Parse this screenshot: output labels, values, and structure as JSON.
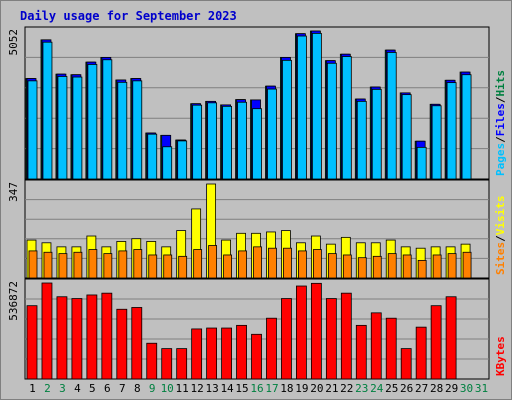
{
  "title": "Daily usage for September 2023",
  "colors": {
    "background": "#c0c0c0",
    "panel": "#c0c0c0",
    "grid": "#7f7f7f",
    "pages": "#00c0ff",
    "files": "#0000ff",
    "hits": "#008040",
    "visits": "#ffff00",
    "sites": "#ff8000",
    "kbytes": "#ff0000",
    "weekday_label": "#000000",
    "weekend_label": "#008040",
    "title": "#0000cc"
  },
  "chart_data": [
    {
      "type": "bar",
      "panel": "hits-files-pages",
      "ymax_label": "5052",
      "ylim": [
        0,
        5052
      ],
      "legend": [
        "Pages",
        "Files",
        "Hits"
      ],
      "x": [
        "1",
        "2",
        "3",
        "4",
        "5",
        "6",
        "7",
        "8",
        "9",
        "10",
        "11",
        "12",
        "13",
        "14",
        "15",
        "16",
        "17",
        "18",
        "19",
        "20",
        "21",
        "22",
        "23",
        "24",
        "25",
        "26",
        "27",
        "28",
        "29",
        "30",
        "31"
      ],
      "weekend": [
        false,
        true,
        true,
        false,
        false,
        false,
        false,
        false,
        true,
        true,
        false,
        false,
        false,
        false,
        false,
        true,
        true,
        false,
        false,
        false,
        false,
        false,
        true,
        true,
        false,
        false,
        false,
        false,
        false,
        true,
        true
      ],
      "series": [
        {
          "name": "Hits",
          "values": [
            3430,
            4750,
            3580,
            3560,
            3990,
            4150,
            3380,
            3430,
            1570,
            1490,
            1330,
            2570,
            2650,
            2530,
            2710,
            2700,
            3170,
            4150,
            4960,
            5052,
            4040,
            4260,
            2730,
            3140,
            4400,
            2940,
            1290,
            2550,
            3370,
            3650,
            null
          ]
        },
        {
          "name": "Files",
          "values": [
            3430,
            4750,
            3580,
            3560,
            3990,
            4150,
            3380,
            3430,
            1570,
            1490,
            1330,
            2570,
            2650,
            2530,
            2710,
            2700,
            3170,
            4150,
            4960,
            5052,
            4040,
            4260,
            2730,
            3140,
            4400,
            2940,
            1290,
            2550,
            3370,
            3650,
            null
          ]
        },
        {
          "name": "Pages",
          "values": [
            3350,
            4670,
            3500,
            3480,
            3910,
            4070,
            3300,
            3350,
            1530,
            1100,
            1300,
            2520,
            2600,
            2480,
            2620,
            2400,
            3070,
            4050,
            4880,
            4970,
            3950,
            4180,
            2650,
            3060,
            4320,
            2880,
            1080,
            2500,
            3290,
            3560,
            null
          ]
        }
      ]
    },
    {
      "type": "bar",
      "panel": "visits-sites",
      "ymax_label": "347",
      "ylim": [
        0,
        347
      ],
      "legend": [
        "Sites",
        "Visits"
      ],
      "x": [
        "1",
        "2",
        "3",
        "4",
        "5",
        "6",
        "7",
        "8",
        "9",
        "10",
        "11",
        "12",
        "13",
        "14",
        "15",
        "16",
        "17",
        "18",
        "19",
        "20",
        "21",
        "22",
        "23",
        "24",
        "25",
        "26",
        "27",
        "28",
        "29",
        "30",
        "31"
      ],
      "series": [
        {
          "name": "Visits",
          "values": [
            140,
            130,
            115,
            115,
            155,
            115,
            135,
            145,
            135,
            115,
            175,
            255,
            347,
            140,
            165,
            165,
            170,
            175,
            130,
            155,
            125,
            150,
            130,
            130,
            140,
            115,
            110,
            115,
            115,
            125,
            null
          ]
        },
        {
          "name": "Sites",
          "values": [
            100,
            95,
            90,
            95,
            105,
            90,
            100,
            105,
            85,
            85,
            80,
            105,
            120,
            85,
            100,
            115,
            110,
            110,
            100,
            105,
            90,
            85,
            75,
            80,
            90,
            85,
            65,
            85,
            90,
            95,
            null
          ]
        }
      ]
    },
    {
      "type": "bar",
      "panel": "kbytes",
      "ymax_label": "536872",
      "ylim": [
        0,
        536872
      ],
      "legend": [
        "KBytes"
      ],
      "x": [
        "1",
        "2",
        "3",
        "4",
        "5",
        "6",
        "7",
        "8",
        "9",
        "10",
        "11",
        "12",
        "13",
        "14",
        "15",
        "16",
        "17",
        "18",
        "19",
        "20",
        "21",
        "22",
        "23",
        "24",
        "25",
        "26",
        "27",
        "28",
        "29",
        "30",
        "31"
      ],
      "series": [
        {
          "name": "KBytes",
          "values": [
            410000,
            536872,
            460000,
            450000,
            470000,
            480000,
            390000,
            400000,
            200000,
            170000,
            170000,
            280000,
            285000,
            285000,
            300000,
            250000,
            340000,
            450000,
            520000,
            535000,
            450000,
            480000,
            300000,
            370000,
            340000,
            170000,
            290000,
            410000,
            460000,
            0,
            null
          ]
        }
      ]
    }
  ]
}
